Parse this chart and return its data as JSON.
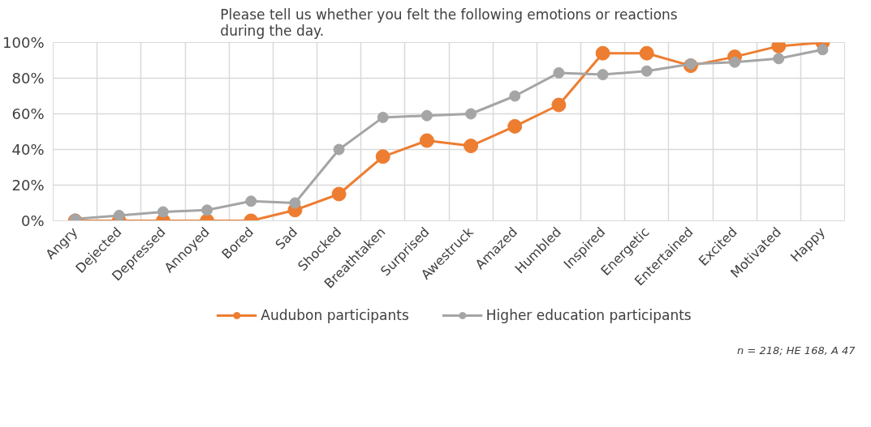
{
  "chart_data": {
    "type": "line",
    "title": "Please tell us whether you felt the following emotions or reactions\nduring the day.",
    "categories": [
      "Angry",
      "Dejected",
      "Depressed",
      "Annoyed",
      "Bored",
      "Sad",
      "Shocked",
      "Breathtaken",
      "Surprised",
      "Awestruck",
      "Amazed",
      "Humbled",
      "Inspired",
      "Energetic",
      "Entertained",
      "Excited",
      "Motivated",
      "Happy"
    ],
    "series": [
      {
        "name": "Audubon participants",
        "color": "#ed7d31",
        "values": [
          0,
          0,
          0,
          0,
          0,
          6,
          15,
          36,
          45,
          42,
          53,
          65,
          94,
          94,
          87,
          92,
          98,
          100
        ]
      },
      {
        "name": "Higher education participants",
        "color": "#a5a5a5",
        "values": [
          1,
          3,
          5,
          6,
          11,
          10,
          40,
          58,
          59,
          60,
          70,
          83,
          82,
          84,
          88,
          89,
          91,
          96
        ]
      }
    ],
    "ylim": [
      0,
      100
    ],
    "yticks": [
      {
        "value": 0,
        "label": "0%"
      },
      {
        "value": 20,
        "label": "20%"
      },
      {
        "value": 40,
        "label": "40%"
      },
      {
        "value": 60,
        "label": "60%"
      },
      {
        "value": 80,
        "label": "80%"
      },
      {
        "value": 100,
        "label": "100%"
      }
    ],
    "grid": true,
    "legend": "bottom",
    "marker": "circle",
    "line_style": "solid",
    "annotations": [
      "n = 218; HE 168, A 47"
    ]
  }
}
